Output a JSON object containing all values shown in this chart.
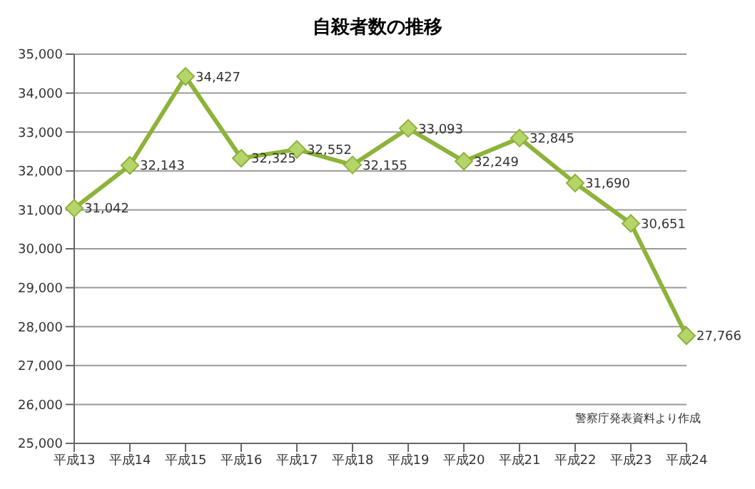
{
  "chart_data": {
    "type": "line",
    "title": "自殺者数の推移",
    "categories": [
      "平成13",
      "平成14",
      "平成15",
      "平成16",
      "平成17",
      "平成18",
      "平成19",
      "平成20",
      "平成21",
      "平成22",
      "平成23",
      "平成24"
    ],
    "values": [
      31042,
      32143,
      34427,
      32325,
      32552,
      32155,
      33093,
      32249,
      32845,
      31690,
      30651,
      27766
    ],
    "value_labels": [
      "31,042",
      "32,143",
      "34,427",
      "32,325",
      "32,552",
      "32,155",
      "33,093",
      "32,249",
      "32,845",
      "31,690",
      "30,651",
      "27,766"
    ],
    "color": "#8db33a",
    "ylim": [
      25000,
      35000
    ],
    "yticks": [
      {
        "value": 25000,
        "label": "25,000"
      },
      {
        "value": 26000,
        "label": "26,000"
      },
      {
        "value": 27000,
        "label": "27,000"
      },
      {
        "value": 28000,
        "label": "28,000"
      },
      {
        "value": 29000,
        "label": "29,000"
      },
      {
        "value": 30000,
        "label": "30,000"
      },
      {
        "value": 31000,
        "label": "31,000"
      },
      {
        "value": 32000,
        "label": "32,000"
      },
      {
        "value": 33000,
        "label": "33,000"
      },
      {
        "value": 34000,
        "label": "34,000"
      },
      {
        "value": 35000,
        "label": "35,000"
      }
    ],
    "grid": "y",
    "marker": "diamond",
    "annotations": [
      "警察庁発表資料より作成"
    ]
  }
}
